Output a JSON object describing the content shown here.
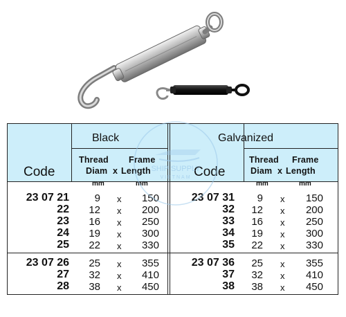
{
  "headers": {
    "black": "Black",
    "galvanized": "Galvanized",
    "code": "Code",
    "thread_line1": "Thread",
    "frame_line1": "Frame",
    "diam": "Diam",
    "x": "x",
    "length": "Length",
    "mm": "mm"
  },
  "watermark": {
    "line1": "SHIP SUPPLY",
    "line2": "VIETNAM"
  },
  "black": {
    "group1": {
      "codes": [
        "23 07 21",
        "22",
        "23",
        "24",
        "25"
      ],
      "diam": [
        "9",
        "12",
        "16",
        "19",
        "22"
      ],
      "length": [
        "150",
        "200",
        "250",
        "300",
        "330"
      ]
    },
    "group2": {
      "codes": [
        "23 07 26",
        "27",
        "28"
      ],
      "diam": [
        "25",
        "32",
        "38"
      ],
      "length": [
        "355",
        "410",
        "450"
      ]
    }
  },
  "galvanized": {
    "group1": {
      "codes": [
        "23 07 31",
        "32",
        "33",
        "34",
        "35"
      ],
      "diam": [
        "9",
        "12",
        "16",
        "19",
        "22"
      ],
      "length": [
        "150",
        "200",
        "250",
        "300",
        "330"
      ]
    },
    "group2": {
      "codes": [
        "23 07 36",
        "37",
        "38"
      ],
      "diam": [
        "25",
        "32",
        "38"
      ],
      "length": [
        "355",
        "410",
        "450"
      ]
    }
  }
}
